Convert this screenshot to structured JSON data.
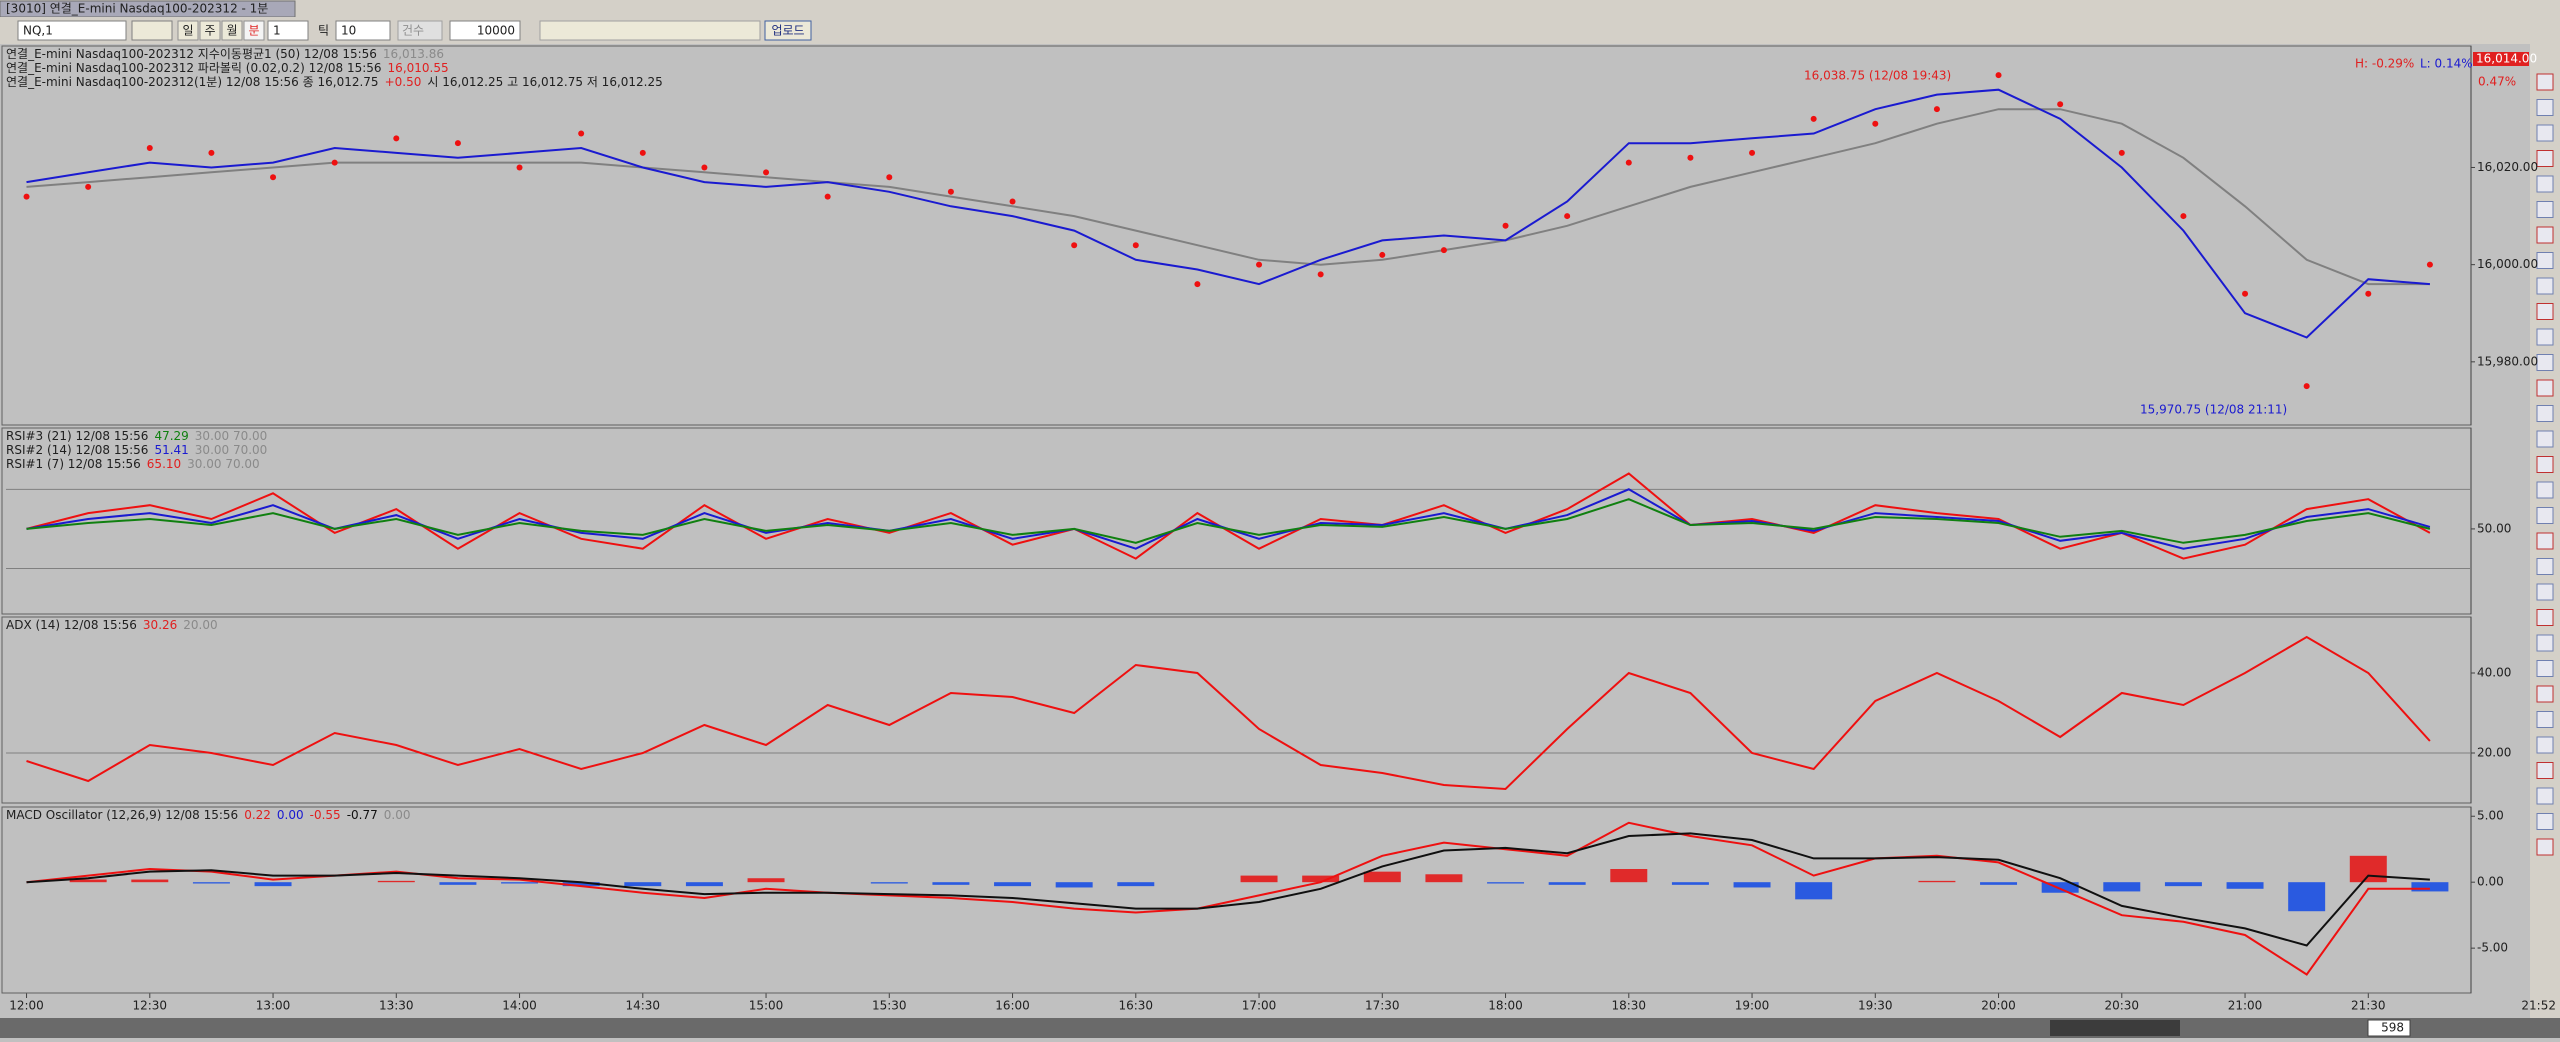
{
  "window": {
    "title": "[3010] 연결_E-mini Nasdaq100-202312 - 1분"
  },
  "toolbar": {
    "symbol": "NQ,1",
    "periods": [
      "일",
      "주",
      "월",
      "분"
    ],
    "minute": "1",
    "tick": "틱",
    "tick_value": "10",
    "count": "건수",
    "count_value": "10000",
    "upload": "업로드"
  },
  "status": {
    "bars": "598",
    "clock": "21:52"
  },
  "annotations": {
    "high": "16,038.75 (12/08 19:43)",
    "low": "15,970.75 (12/08 21:11)",
    "h_pct": "H: -0.29%",
    "l_pct": "L: 0.14%",
    "price_tag": "16,014.00",
    "change_pct": "0.47%"
  },
  "x_axis": {
    "xlim": [
      "11:55",
      "21:55"
    ],
    "xticks": [
      "12:00",
      "12:30",
      "13:00",
      "13:30",
      "14:00",
      "14:30",
      "15:00",
      "15:30",
      "16:00",
      "16:30",
      "17:00",
      "17:30",
      "18:00",
      "18:30",
      "19:00",
      "19:30",
      "20:00",
      "20:30",
      "21:00",
      "21:30"
    ]
  },
  "chart_data": [
    {
      "type": "line",
      "ylim": [
        15967,
        16045
      ],
      "yticks": [
        {
          "value": 15980,
          "label": "15,980.00"
        },
        {
          "value": 16000,
          "label": "16,000.00"
        },
        {
          "value": 16020,
          "label": "16,020.00"
        }
      ],
      "legend": [
        [
          {
            "text": "연결_E-mini Nasdaq100-202312 지수이동평균1  (50)  12/08 15:56",
            "color": "#202020"
          },
          {
            "text": "16,013.86",
            "color": "#8a8a8a"
          }
        ],
        [
          {
            "text": "연결_E-mini Nasdaq100-202312 파라볼릭  (0.02,0.2)  12/08 15:56",
            "color": "#202020"
          },
          {
            "text": "16,010.55",
            "color": "#e02020"
          }
        ],
        [
          {
            "text": "연결_E-mini Nasdaq100-202312(1분)  12/08 15:56   종 16,012.75",
            "color": "#202020"
          },
          {
            "text": "+0.50",
            "color": "#e02020"
          },
          {
            "text": "시 16,012.25  고 16,012.75  저 16,012.25",
            "color": "#202020"
          }
        ]
      ],
      "x": [
        "12:00",
        "12:15",
        "12:30",
        "12:45",
        "13:00",
        "13:15",
        "13:30",
        "13:45",
        "14:00",
        "14:15",
        "14:30",
        "14:45",
        "15:00",
        "15:15",
        "15:30",
        "15:45",
        "16:00",
        "16:15",
        "16:30",
        "16:45",
        "17:00",
        "17:15",
        "17:30",
        "17:45",
        "18:00",
        "18:15",
        "18:30",
        "18:45",
        "19:00",
        "19:15",
        "19:30",
        "19:45",
        "20:00",
        "20:15",
        "20:30",
        "20:45",
        "21:00",
        "21:15",
        "21:30",
        "21:45"
      ],
      "series": [
        {
          "type": "line",
          "color": "#808080",
          "values": [
            16016,
            16017,
            16018,
            16019,
            16020,
            16021,
            16021,
            16021,
            16021,
            16021,
            16020,
            16019,
            16018,
            16017,
            16016,
            16014,
            16012,
            16010,
            16007,
            16004,
            16001,
            16000,
            16001,
            16003,
            16005,
            16008,
            16012,
            16016,
            16019,
            16022,
            16025,
            16029,
            16032,
            16032,
            16029,
            16022,
            16012,
            16001,
            15996,
            15996
          ]
        },
        {
          "type": "dots",
          "color": "#ee1010",
          "values": [
            16014,
            16016,
            16024,
            16023,
            16018,
            16021,
            16026,
            16025,
            16020,
            16027,
            16023,
            16020,
            16019,
            16014,
            16018,
            16015,
            16013,
            16004,
            16004,
            15996,
            16000,
            15998,
            16002,
            16003,
            16008,
            16010,
            16021,
            16022,
            16023,
            16030,
            16029,
            16032,
            16039,
            16033,
            16023,
            16010,
            15994,
            15975,
            15994,
            16000
          ]
        },
        {
          "type": "line",
          "color": "#1a1ad0",
          "values": [
            16017,
            16019,
            16021,
            16020,
            16021,
            16024,
            16023,
            16022,
            16023,
            16024,
            16020,
            16017,
            16016,
            16017,
            16015,
            16012,
            16010,
            16007,
            16001,
            15999,
            15996,
            16001,
            16005,
            16006,
            16005,
            16013,
            16025,
            16025,
            16026,
            16027,
            16032,
            16035,
            16036,
            16030,
            16020,
            16007,
            15990,
            15985,
            15997,
            15996
          ]
        }
      ]
    },
    {
      "type": "line",
      "ylim": [
        7,
        101
      ],
      "yticks": [
        {
          "value": 50,
          "label": "50.00"
        }
      ],
      "ref_lines": [
        30,
        70
      ],
      "legend": [
        [
          {
            "text": "RSI#3  (21)  12/08 15:56",
            "color": "#202020"
          },
          {
            "text": "47.29",
            "color": "#108010"
          },
          {
            "text": "30.00 70.00",
            "color": "#8a8a8a"
          }
        ],
        [
          {
            "text": "RSI#2  (14)  12/08 15:56",
            "color": "#202020"
          },
          {
            "text": "51.41",
            "color": "#1a1ad0"
          },
          {
            "text": "30.00 70.00",
            "color": "#8a8a8a"
          }
        ],
        [
          {
            "text": "RSI#1  (7)  12/08 15:56",
            "color": "#202020"
          },
          {
            "text": "65.10",
            "color": "#e02020"
          },
          {
            "text": "30.00 70.00",
            "color": "#8a8a8a"
          }
        ]
      ],
      "x": [
        "12:00",
        "12:15",
        "12:30",
        "12:45",
        "13:00",
        "13:15",
        "13:30",
        "13:45",
        "14:00",
        "14:15",
        "14:30",
        "14:45",
        "15:00",
        "15:15",
        "15:30",
        "15:45",
        "16:00",
        "16:15",
        "16:30",
        "16:45",
        "17:00",
        "17:15",
        "17:30",
        "17:45",
        "18:00",
        "18:15",
        "18:30",
        "18:45",
        "19:00",
        "19:15",
        "19:30",
        "19:45",
        "20:00",
        "20:15",
        "20:30",
        "20:45",
        "21:00",
        "21:15",
        "21:30",
        "21:45"
      ],
      "series": [
        {
          "type": "line",
          "color": "#ee1010",
          "values": [
            50,
            58,
            62,
            55,
            68,
            48,
            60,
            40,
            58,
            45,
            40,
            62,
            45,
            55,
            48,
            58,
            42,
            50,
            35,
            58,
            40,
            55,
            52,
            62,
            48,
            60,
            78,
            52,
            55,
            48,
            62,
            58,
            55,
            40,
            48,
            35,
            42,
            60,
            65,
            48
          ]
        },
        {
          "type": "line",
          "color": "#1a1ad0",
          "values": [
            50,
            55,
            58,
            53,
            62,
            50,
            57,
            45,
            55,
            48,
            45,
            58,
            48,
            53,
            49,
            55,
            45,
            50,
            40,
            55,
            45,
            53,
            52,
            58,
            50,
            57,
            70,
            52,
            54,
            49,
            58,
            56,
            54,
            44,
            48,
            40,
            45,
            56,
            60,
            51
          ]
        },
        {
          "type": "line",
          "color": "#108010",
          "values": [
            50,
            53,
            55,
            52,
            58,
            50,
            55,
            47,
            53,
            49,
            47,
            55,
            49,
            52,
            49,
            53,
            47,
            50,
            43,
            53,
            47,
            52,
            51,
            56,
            50,
            55,
            65,
            52,
            53,
            50,
            56,
            55,
            53,
            46,
            49,
            43,
            47,
            54,
            58,
            50
          ]
        }
      ]
    },
    {
      "type": "line",
      "ylim": [
        7.5,
        54
      ],
      "yticks": [
        {
          "value": 20,
          "label": "20.00"
        },
        {
          "value": 40,
          "label": "40.00"
        }
      ],
      "ref_lines": [
        20
      ],
      "legend": [
        [
          {
            "text": "ADX  (14)  12/08 15:56",
            "color": "#202020"
          },
          {
            "text": "30.26",
            "color": "#e02020"
          },
          {
            "text": "20.00",
            "color": "#8a8a8a"
          }
        ]
      ],
      "x": [
        "12:00",
        "12:15",
        "12:30",
        "12:45",
        "13:00",
        "13:15",
        "13:30",
        "13:45",
        "14:00",
        "14:15",
        "14:30",
        "14:45",
        "15:00",
        "15:15",
        "15:30",
        "15:45",
        "16:00",
        "16:15",
        "16:30",
        "16:45",
        "17:00",
        "17:15",
        "17:30",
        "17:45",
        "18:00",
        "18:15",
        "18:30",
        "18:45",
        "19:00",
        "19:15",
        "19:30",
        "19:45",
        "20:00",
        "20:15",
        "20:30",
        "20:45",
        "21:00",
        "21:15",
        "21:30",
        "21:45"
      ],
      "series": [
        {
          "type": "line",
          "color": "#ee1010",
          "values": [
            18,
            13,
            22,
            20,
            17,
            25,
            22,
            17,
            21,
            16,
            20,
            27,
            22,
            32,
            27,
            35,
            34,
            30,
            42,
            40,
            26,
            17,
            15,
            12,
            11,
            26,
            40,
            35,
            20,
            16,
            33,
            40,
            33,
            24,
            35,
            32,
            40,
            49,
            40,
            23
          ]
        }
      ]
    },
    {
      "type": "line",
      "ylim": [
        -8.4,
        5.7
      ],
      "yticks": [
        {
          "value": -5,
          "label": "-5.00"
        },
        {
          "value": 0,
          "label": "0.00"
        },
        {
          "value": 5,
          "label": "5.00"
        }
      ],
      "legend": [
        [
          {
            "text": "MACD Oscillator  (12,26,9)  12/08 15:56",
            "color": "#202020"
          },
          {
            "text": "0.22",
            "color": "#e02020"
          },
          {
            "text": "0.00",
            "color": "#1a1ad0"
          },
          {
            "text": "-0.55",
            "color": "#e02020"
          },
          {
            "text": "-0.77",
            "color": "#101010"
          },
          {
            "text": "0.00",
            "color": "#8a8a8a"
          }
        ]
      ],
      "x": [
        "12:00",
        "12:15",
        "12:30",
        "12:45",
        "13:00",
        "13:15",
        "13:30",
        "13:45",
        "14:00",
        "14:15",
        "14:30",
        "14:45",
        "15:00",
        "15:15",
        "15:30",
        "15:45",
        "16:00",
        "16:15",
        "16:30",
        "16:45",
        "17:00",
        "17:15",
        "17:30",
        "17:45",
        "18:00",
        "18:15",
        "18:30",
        "18:45",
        "19:00",
        "19:15",
        "19:30",
        "19:45",
        "20:00",
        "20:15",
        "20:30",
        "20:45",
        "21:00",
        "21:15",
        "21:30",
        "21:45"
      ],
      "series": [
        {
          "type": "bar",
          "color": "#e02a2a",
          "negative_color": "#2a5ae0",
          "values": [
            0,
            0.2,
            0.2,
            -0.1,
            -0.3,
            0,
            0.1,
            -0.2,
            -0.1,
            -0.3,
            -0.3,
            -0.3,
            0.3,
            0,
            -0.1,
            -0.2,
            -0.3,
            -0.4,
            -0.3,
            0,
            0.5,
            0.5,
            0.8,
            0.6,
            -0.1,
            -0.2,
            1,
            -0.2,
            -0.4,
            -1.3,
            0,
            0.1,
            -0.2,
            -0.8,
            -0.7,
            -0.3,
            -0.5,
            -2.2,
            2,
            -0.7
          ]
        },
        {
          "type": "line",
          "color": "#ee1010",
          "values": [
            0,
            0.5,
            1,
            0.8,
            0.2,
            0.5,
            0.8,
            0.3,
            0.2,
            -0.3,
            -0.8,
            -1.2,
            -0.5,
            -0.8,
            -1,
            -1.2,
            -1.5,
            -2,
            -2.3,
            -2,
            -1,
            0,
            2,
            3,
            2.5,
            2,
            4.5,
            3.5,
            2.8,
            0.5,
            1.8,
            2,
            1.5,
            -0.5,
            -2.5,
            -3,
            -4,
            -7,
            -0.5,
            -0.5
          ]
        },
        {
          "type": "line",
          "color": "#101010",
          "values": [
            0,
            0.3,
            0.8,
            0.9,
            0.5,
            0.5,
            0.7,
            0.5,
            0.3,
            0,
            -0.5,
            -0.9,
            -0.8,
            -0.8,
            -0.9,
            -1,
            -1.2,
            -1.6,
            -2,
            -2,
            -1.5,
            -0.5,
            1.2,
            2.4,
            2.6,
            2.2,
            3.5,
            3.7,
            3.2,
            1.8,
            1.8,
            1.9,
            1.7,
            0.3,
            -1.8,
            -2.7,
            -3.5,
            -4.8,
            0.5,
            0.2
          ]
        }
      ]
    }
  ]
}
